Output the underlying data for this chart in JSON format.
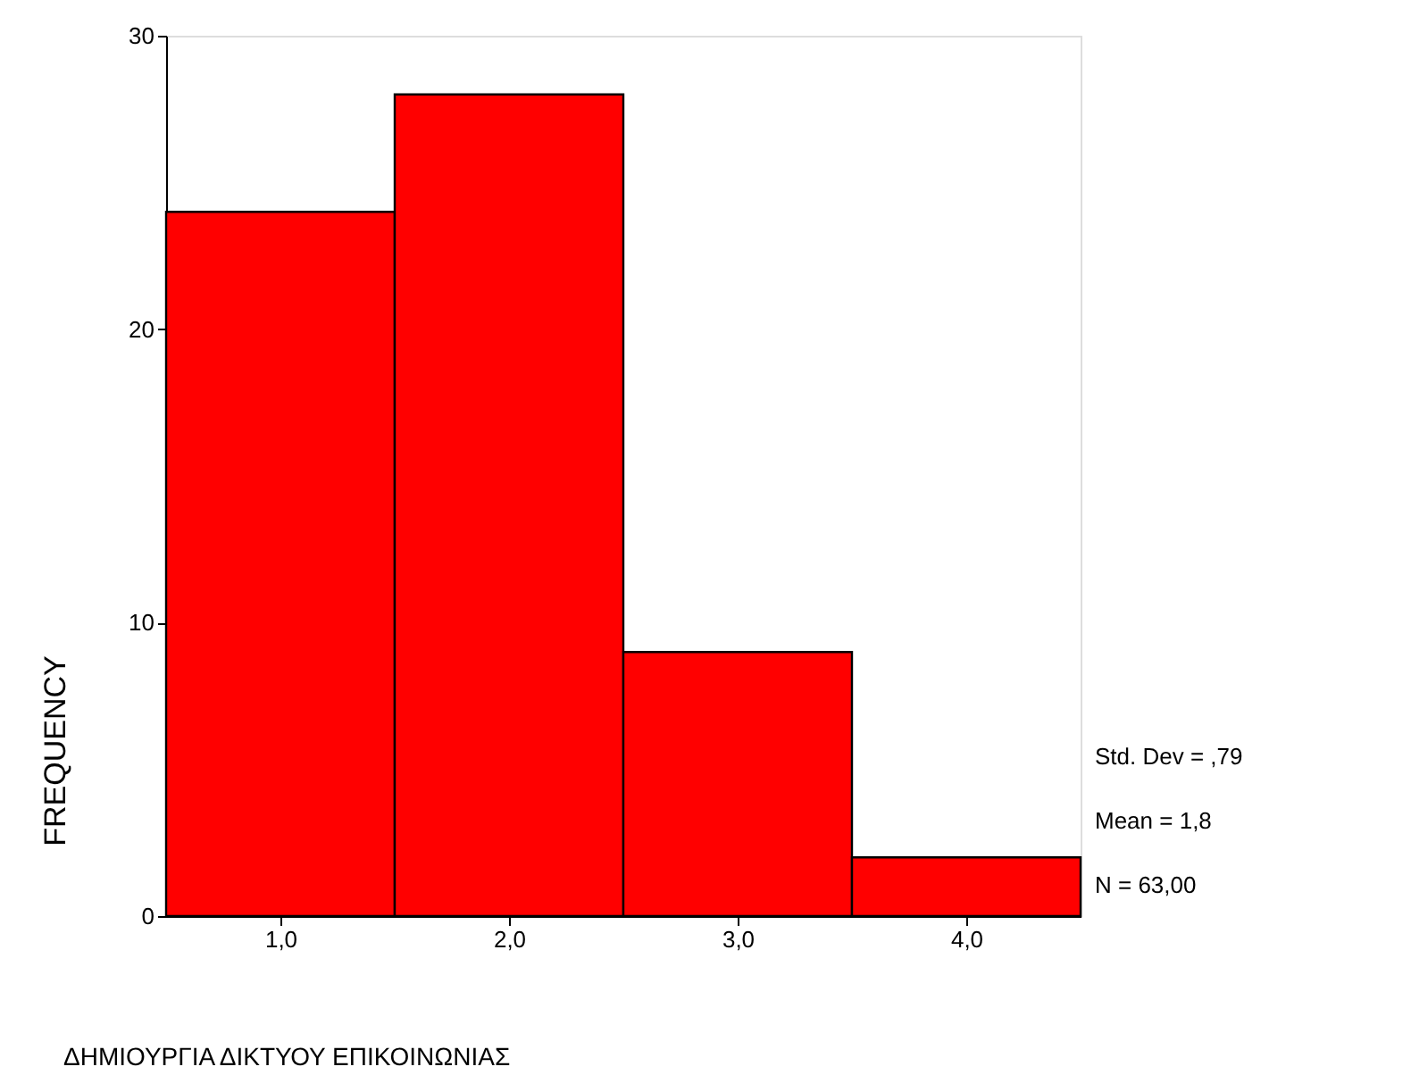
{
  "chart_data": {
    "type": "histogram",
    "bins": [
      0.5,
      1.5,
      2.5,
      3.5,
      4.5
    ],
    "values": [
      24,
      28,
      9,
      2
    ],
    "color": "#ff0000",
    "xlabel": "ΔΗΜΙΟΥΡΓΙΑ  ΔΙΚΤΥΟΥ ΕΠΙΚΟΙΝΩΝΙΑΣ",
    "ylabel": "FREQUENCY",
    "xlim": [
      0.5,
      4.5
    ],
    "ylim": [
      0,
      30
    ],
    "xticks": [
      {
        "value": 1,
        "label": "1,0"
      },
      {
        "value": 2,
        "label": "2,0"
      },
      {
        "value": 3,
        "label": "3,0"
      },
      {
        "value": 4,
        "label": "4,0"
      }
    ],
    "yticks": [
      0,
      10,
      20,
      30
    ],
    "grid": false,
    "annotations": [
      "Std. Dev = ,79",
      "Mean = 1,8",
      "N = 63,00"
    ]
  }
}
